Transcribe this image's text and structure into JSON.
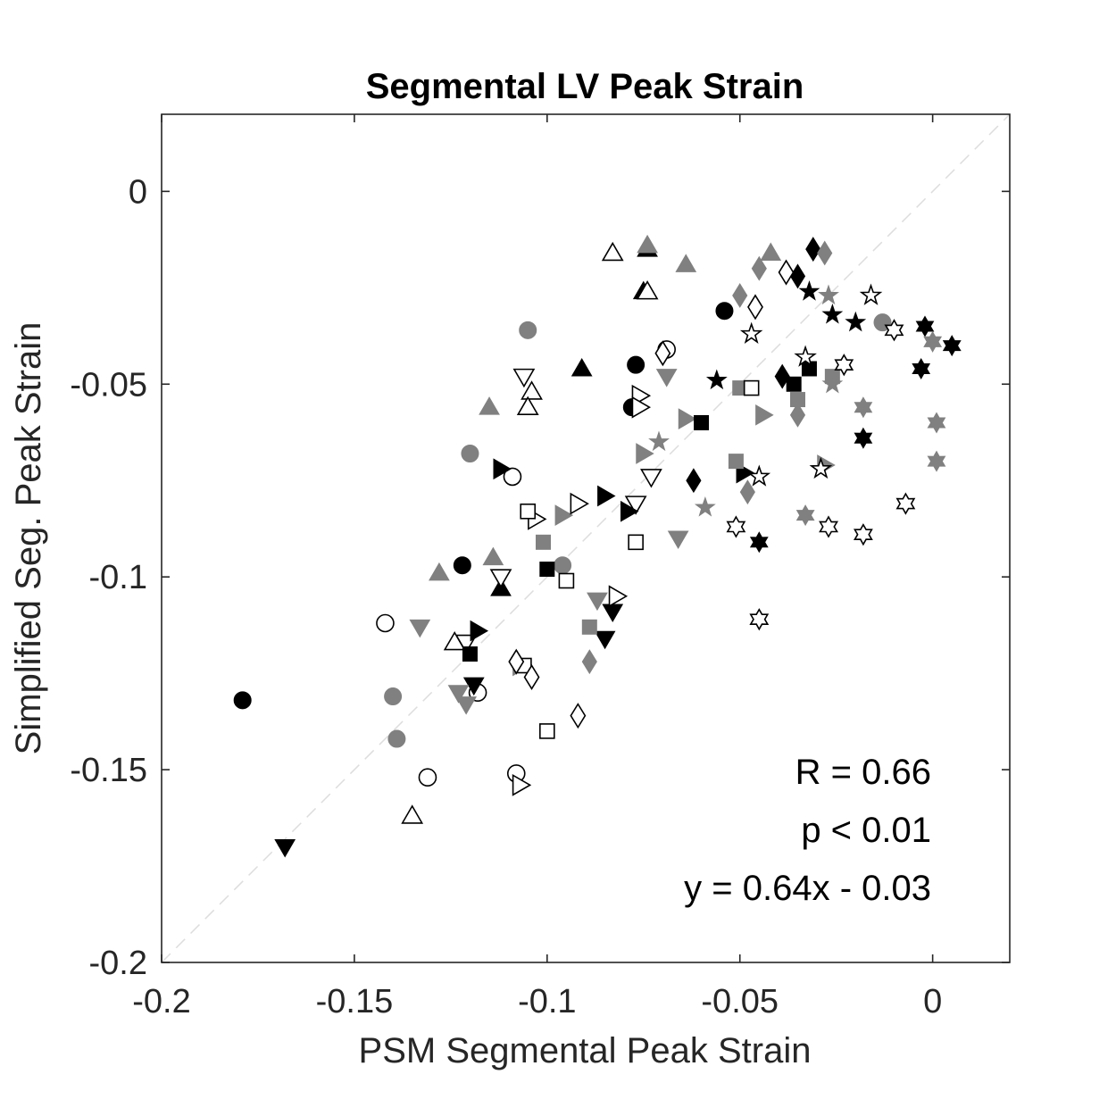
{
  "chart_data": {
    "type": "scatter",
    "title": "Segmental LV Peak Strain",
    "xlabel": "PSM Segmental Peak Strain",
    "ylabel": "Simplified Seg. Peak Strain",
    "xlim": [
      -0.2,
      0.02
    ],
    "ylim": [
      -0.2,
      0.02
    ],
    "xticks": [
      -0.2,
      -0.15,
      -0.1,
      -0.05,
      0
    ],
    "xtick_labels": [
      "-0.2",
      "-0.15",
      "-0.1",
      "-0.05",
      "0"
    ],
    "yticks": [
      -0.2,
      -0.15,
      -0.1,
      -0.05,
      0
    ],
    "ytick_labels": [
      "-0.2",
      "-0.15",
      "-0.1",
      "-0.05",
      "0"
    ],
    "grid": false,
    "identity_line": true,
    "colors": {
      "black": "#000000",
      "gray": "#808080",
      "open": "#ffffff",
      "axes": "#262626",
      "identity": "#dddddd"
    },
    "annotations": [
      "R = 0.66",
      "p < 0.01",
      "y = 0.64x - 0.03"
    ],
    "series": [
      {
        "marker": "circle",
        "fill": "black",
        "points": [
          [
            -0.179,
            -0.132
          ],
          [
            -0.122,
            -0.097
          ],
          [
            -0.077,
            -0.045
          ],
          [
            -0.078,
            -0.056
          ],
          [
            -0.054,
            -0.031
          ]
        ]
      },
      {
        "marker": "circle",
        "fill": "gray",
        "points": [
          [
            -0.105,
            -0.036
          ],
          [
            -0.12,
            -0.068
          ],
          [
            -0.14,
            -0.131
          ],
          [
            -0.139,
            -0.142
          ],
          [
            -0.096,
            -0.097
          ],
          [
            -0.013,
            -0.034
          ]
        ]
      },
      {
        "marker": "circle",
        "fill": "open",
        "points": [
          [
            -0.142,
            -0.112
          ],
          [
            -0.131,
            -0.152
          ],
          [
            -0.109,
            -0.074
          ],
          [
            -0.118,
            -0.13
          ],
          [
            -0.108,
            -0.151
          ],
          [
            -0.069,
            -0.041
          ]
        ]
      },
      {
        "marker": "triangle-up",
        "fill": "black",
        "points": [
          [
            -0.091,
            -0.046
          ],
          [
            -0.112,
            -0.103
          ],
          [
            -0.074,
            -0.015
          ],
          [
            -0.075,
            -0.026
          ]
        ]
      },
      {
        "marker": "triangle-up",
        "fill": "gray",
        "points": [
          [
            -0.115,
            -0.056
          ],
          [
            -0.114,
            -0.095
          ],
          [
            -0.128,
            -0.099
          ],
          [
            -0.074,
            -0.014
          ],
          [
            -0.064,
            -0.019
          ],
          [
            -0.042,
            -0.016
          ]
        ]
      },
      {
        "marker": "triangle-up",
        "fill": "open",
        "points": [
          [
            -0.104,
            -0.052
          ],
          [
            -0.105,
            -0.056
          ],
          [
            -0.124,
            -0.117
          ],
          [
            -0.135,
            -0.162
          ],
          [
            -0.083,
            -0.016
          ],
          [
            -0.074,
            -0.026
          ]
        ]
      },
      {
        "marker": "triangle-down",
        "fill": "black",
        "points": [
          [
            -0.168,
            -0.17
          ],
          [
            -0.119,
            -0.128
          ],
          [
            -0.083,
            -0.109
          ],
          [
            -0.085,
            -0.116
          ]
        ]
      },
      {
        "marker": "triangle-down",
        "fill": "gray",
        "points": [
          [
            -0.133,
            -0.113
          ],
          [
            -0.123,
            -0.13
          ],
          [
            -0.121,
            -0.133
          ],
          [
            -0.087,
            -0.106
          ],
          [
            -0.066,
            -0.09
          ],
          [
            -0.069,
            -0.048
          ]
        ]
      },
      {
        "marker": "triangle-down",
        "fill": "open",
        "points": [
          [
            -0.106,
            -0.048
          ],
          [
            -0.112,
            -0.1
          ],
          [
            -0.121,
            -0.117
          ],
          [
            -0.073,
            -0.074
          ],
          [
            -0.077,
            -0.081
          ]
        ]
      },
      {
        "marker": "triangle-right",
        "fill": "black",
        "points": [
          [
            -0.112,
            -0.072
          ],
          [
            -0.118,
            -0.114
          ],
          [
            -0.085,
            -0.079
          ],
          [
            -0.079,
            -0.083
          ],
          [
            -0.049,
            -0.073
          ]
        ]
      },
      {
        "marker": "triangle-right",
        "fill": "gray",
        "points": [
          [
            -0.107,
            -0.123
          ],
          [
            -0.096,
            -0.084
          ],
          [
            -0.075,
            -0.068
          ],
          [
            -0.064,
            -0.059
          ],
          [
            -0.044,
            -0.058
          ],
          [
            -0.028,
            -0.071
          ]
        ]
      },
      {
        "marker": "triangle-right",
        "fill": "open",
        "points": [
          [
            -0.103,
            -0.085
          ],
          [
            -0.092,
            -0.081
          ],
          [
            -0.076,
            -0.053
          ],
          [
            -0.076,
            -0.056
          ],
          [
            -0.107,
            -0.154
          ],
          [
            -0.082,
            -0.105
          ]
        ]
      },
      {
        "marker": "square",
        "fill": "black",
        "points": [
          [
            -0.12,
            -0.12
          ],
          [
            -0.1,
            -0.098
          ],
          [
            -0.06,
            -0.06
          ],
          [
            -0.036,
            -0.05
          ],
          [
            -0.032,
            -0.046
          ]
        ]
      },
      {
        "marker": "square",
        "fill": "gray",
        "points": [
          [
            -0.101,
            -0.091
          ],
          [
            -0.089,
            -0.113
          ],
          [
            -0.051,
            -0.07
          ],
          [
            -0.05,
            -0.051
          ],
          [
            -0.035,
            -0.054
          ],
          [
            -0.026,
            -0.048
          ]
        ]
      },
      {
        "marker": "square",
        "fill": "open",
        "points": [
          [
            -0.105,
            -0.083
          ],
          [
            -0.1,
            -0.14
          ],
          [
            -0.095,
            -0.101
          ],
          [
            -0.077,
            -0.091
          ],
          [
            -0.047,
            -0.051
          ],
          [
            -0.106,
            -0.123
          ]
        ]
      },
      {
        "marker": "diamond",
        "fill": "black",
        "points": [
          [
            -0.039,
            -0.048
          ],
          [
            -0.031,
            -0.015
          ],
          [
            -0.035,
            -0.022
          ],
          [
            -0.062,
            -0.075
          ]
        ]
      },
      {
        "marker": "diamond",
        "fill": "gray",
        "points": [
          [
            -0.089,
            -0.122
          ],
          [
            -0.048,
            -0.078
          ],
          [
            -0.05,
            -0.027
          ],
          [
            -0.045,
            -0.02
          ],
          [
            -0.035,
            -0.058
          ],
          [
            -0.028,
            -0.016
          ]
        ]
      },
      {
        "marker": "diamond",
        "fill": "open",
        "points": [
          [
            -0.108,
            -0.122
          ],
          [
            -0.104,
            -0.126
          ],
          [
            -0.092,
            -0.136
          ],
          [
            -0.07,
            -0.042
          ],
          [
            -0.046,
            -0.03
          ],
          [
            -0.038,
            -0.021
          ]
        ]
      },
      {
        "marker": "star",
        "fill": "black",
        "points": [
          [
            -0.056,
            -0.049
          ],
          [
            -0.032,
            -0.026
          ],
          [
            -0.026,
            -0.032
          ],
          [
            -0.02,
            -0.034
          ]
        ]
      },
      {
        "marker": "star",
        "fill": "gray",
        "points": [
          [
            -0.071,
            -0.065
          ],
          [
            -0.059,
            -0.082
          ],
          [
            -0.027,
            -0.027
          ],
          [
            -0.026,
            -0.05
          ]
        ]
      },
      {
        "marker": "star",
        "fill": "open",
        "points": [
          [
            -0.047,
            -0.037
          ],
          [
            -0.033,
            -0.043
          ],
          [
            -0.045,
            -0.074
          ],
          [
            -0.029,
            -0.072
          ],
          [
            -0.016,
            -0.027
          ]
        ]
      },
      {
        "marker": "hexagram",
        "fill": "black",
        "points": [
          [
            -0.045,
            -0.091
          ],
          [
            -0.018,
            -0.064
          ],
          [
            -0.003,
            -0.046
          ],
          [
            -0.002,
            -0.035
          ],
          [
            0.005,
            -0.04
          ]
        ]
      },
      {
        "marker": "hexagram",
        "fill": "gray",
        "points": [
          [
            -0.033,
            -0.084
          ],
          [
            -0.018,
            -0.056
          ],
          [
            0.001,
            -0.06
          ],
          [
            0.001,
            -0.07
          ],
          [
            0.0,
            -0.039
          ]
        ]
      },
      {
        "marker": "hexagram",
        "fill": "open",
        "points": [
          [
            -0.051,
            -0.087
          ],
          [
            -0.045,
            -0.111
          ],
          [
            -0.027,
            -0.087
          ],
          [
            -0.018,
            -0.089
          ],
          [
            -0.007,
            -0.081
          ],
          [
            -0.023,
            -0.045
          ],
          [
            -0.01,
            -0.036
          ]
        ]
      }
    ]
  }
}
